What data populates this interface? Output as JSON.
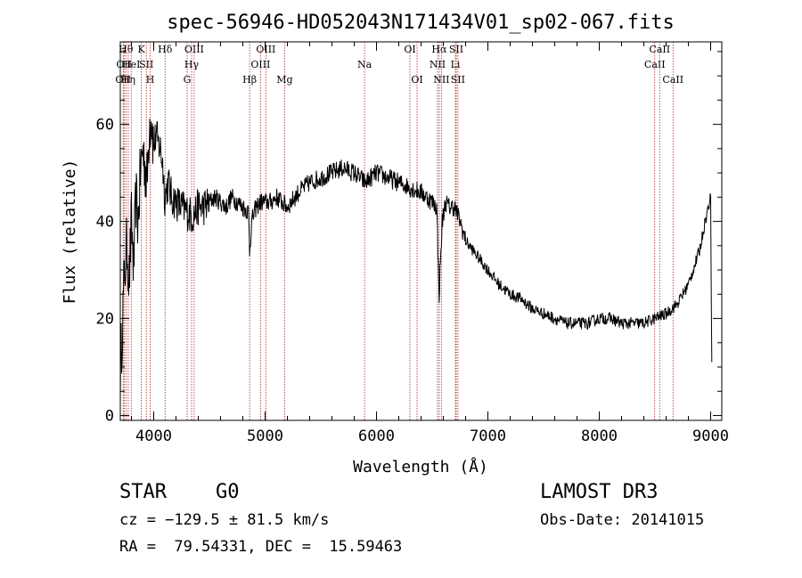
{
  "chart_data": {
    "type": "line",
    "title": "spec-56946-HD052043N171434V01_sp02-067.fits",
    "xlabel": "Wavelength (Å)",
    "ylabel": "Flux (relative)",
    "xlim": [
      3700,
      9100
    ],
    "ylim": [
      -1,
      77
    ],
    "x_ticks": [
      4000,
      5000,
      6000,
      7000,
      8000,
      9000
    ],
    "y_ticks": [
      0,
      20,
      40,
      60
    ],
    "grid": false,
    "series": [
      {
        "x": [
          3700,
          3720,
          3740,
          3760,
          3780,
          3800,
          3820,
          3840,
          3860,
          3880,
          3900,
          3920,
          3940,
          3960,
          3980,
          4000,
          4020,
          4040,
          4060,
          4080,
          4100,
          4130,
          4160,
          4200,
          4250,
          4300,
          4350,
          4400,
          4450,
          4500,
          4550,
          4600,
          4650,
          4700,
          4750,
          4800,
          4850,
          4861,
          4880,
          4920,
          4960,
          5000,
          5050,
          5100,
          5150,
          5200,
          5300,
          5400,
          5500,
          5600,
          5700,
          5800,
          5900,
          6000,
          6100,
          6200,
          6300,
          6400,
          6500,
          6540,
          6563,
          6590,
          6620,
          6650,
          6700,
          6750,
          6800,
          6900,
          7000,
          7100,
          7200,
          7300,
          7400,
          7500,
          7600,
          7700,
          7800,
          7900,
          8000,
          8100,
          8200,
          8300,
          8400,
          8500,
          8600,
          8700,
          8800,
          8900,
          8950,
          9000,
          9010
        ],
        "values": [
          8,
          20,
          30,
          35,
          28,
          40,
          30,
          45,
          40,
          50,
          55,
          52,
          48,
          60,
          62,
          55,
          58,
          56,
          55,
          52,
          45,
          48,
          45,
          44,
          43,
          42,
          41,
          43,
          43,
          44,
          45,
          44,
          43,
          45,
          44,
          43,
          42,
          34,
          40,
          43,
          44,
          44,
          44,
          45,
          44,
          43,
          46,
          48,
          49,
          50,
          51,
          50,
          48,
          50,
          49,
          48,
          47,
          46,
          44,
          43,
          25,
          40,
          44,
          43,
          43,
          40,
          36,
          33,
          30,
          27,
          25,
          24,
          22,
          21,
          20,
          19,
          19,
          19,
          20,
          20,
          19,
          19,
          19,
          20,
          21,
          23,
          27,
          34,
          40,
          45,
          11
        ]
      }
    ],
    "lines": [
      {
        "w": 3726,
        "label": "OII",
        "row": 2
      },
      {
        "w": 3734,
        "label": "OII",
        "row": 1
      },
      {
        "w": 3750,
        "label": "Hθ",
        "row": 0
      },
      {
        "w": 3771,
        "label": "Hη",
        "row": 2
      },
      {
        "w": 3798,
        "label": "HeI",
        "row": 1
      },
      {
        "w": 3889,
        "label": "K",
        "row": 0
      },
      {
        "w": 3934,
        "label": "SII",
        "row": 1
      },
      {
        "w": 3968,
        "label": "H",
        "row": 2
      },
      {
        "w": 4102,
        "label": "Hδ",
        "row": 0
      },
      {
        "w": 4300,
        "label": "G",
        "row": 2
      },
      {
        "w": 4340,
        "label": "Hγ",
        "row": 1
      },
      {
        "w": 4363,
        "label": "OIII",
        "row": 0
      },
      {
        "w": 4861,
        "label": "Hβ",
        "row": 2
      },
      {
        "w": 4959,
        "label": "OIII",
        "row": 1
      },
      {
        "w": 5007,
        "label": "OIII",
        "row": 0
      },
      {
        "w": 5175,
        "label": "Mg",
        "row": 2
      },
      {
        "w": 5893,
        "label": "Na",
        "row": 1
      },
      {
        "w": 6300,
        "label": "OI",
        "row": 0
      },
      {
        "w": 6364,
        "label": "OI",
        "row": 2
      },
      {
        "w": 6548,
        "label": "NII",
        "row": 1
      },
      {
        "w": 6563,
        "label": "Hα",
        "row": 0
      },
      {
        "w": 6583,
        "label": "NII",
        "row": 2
      },
      {
        "w": 6708,
        "label": "Li",
        "row": 1
      },
      {
        "w": 6716,
        "label": "SII",
        "row": 0
      },
      {
        "w": 6731,
        "label": "SII",
        "row": 2
      },
      {
        "w": 8498,
        "label": "CaII",
        "row": 1
      },
      {
        "w": 8542,
        "label": "CaII",
        "row": 0
      },
      {
        "w": 8662,
        "label": "CaII",
        "row": 2
      }
    ]
  },
  "info": {
    "class": "STAR",
    "subclass": "G0",
    "survey": "LAMOST DR3",
    "cz": "cz = −129.5 ± 81.5 km/s",
    "obs_date": "Obs-Date: 20141015",
    "coords": "RA =  79.54331, DEC =  15.59463"
  }
}
